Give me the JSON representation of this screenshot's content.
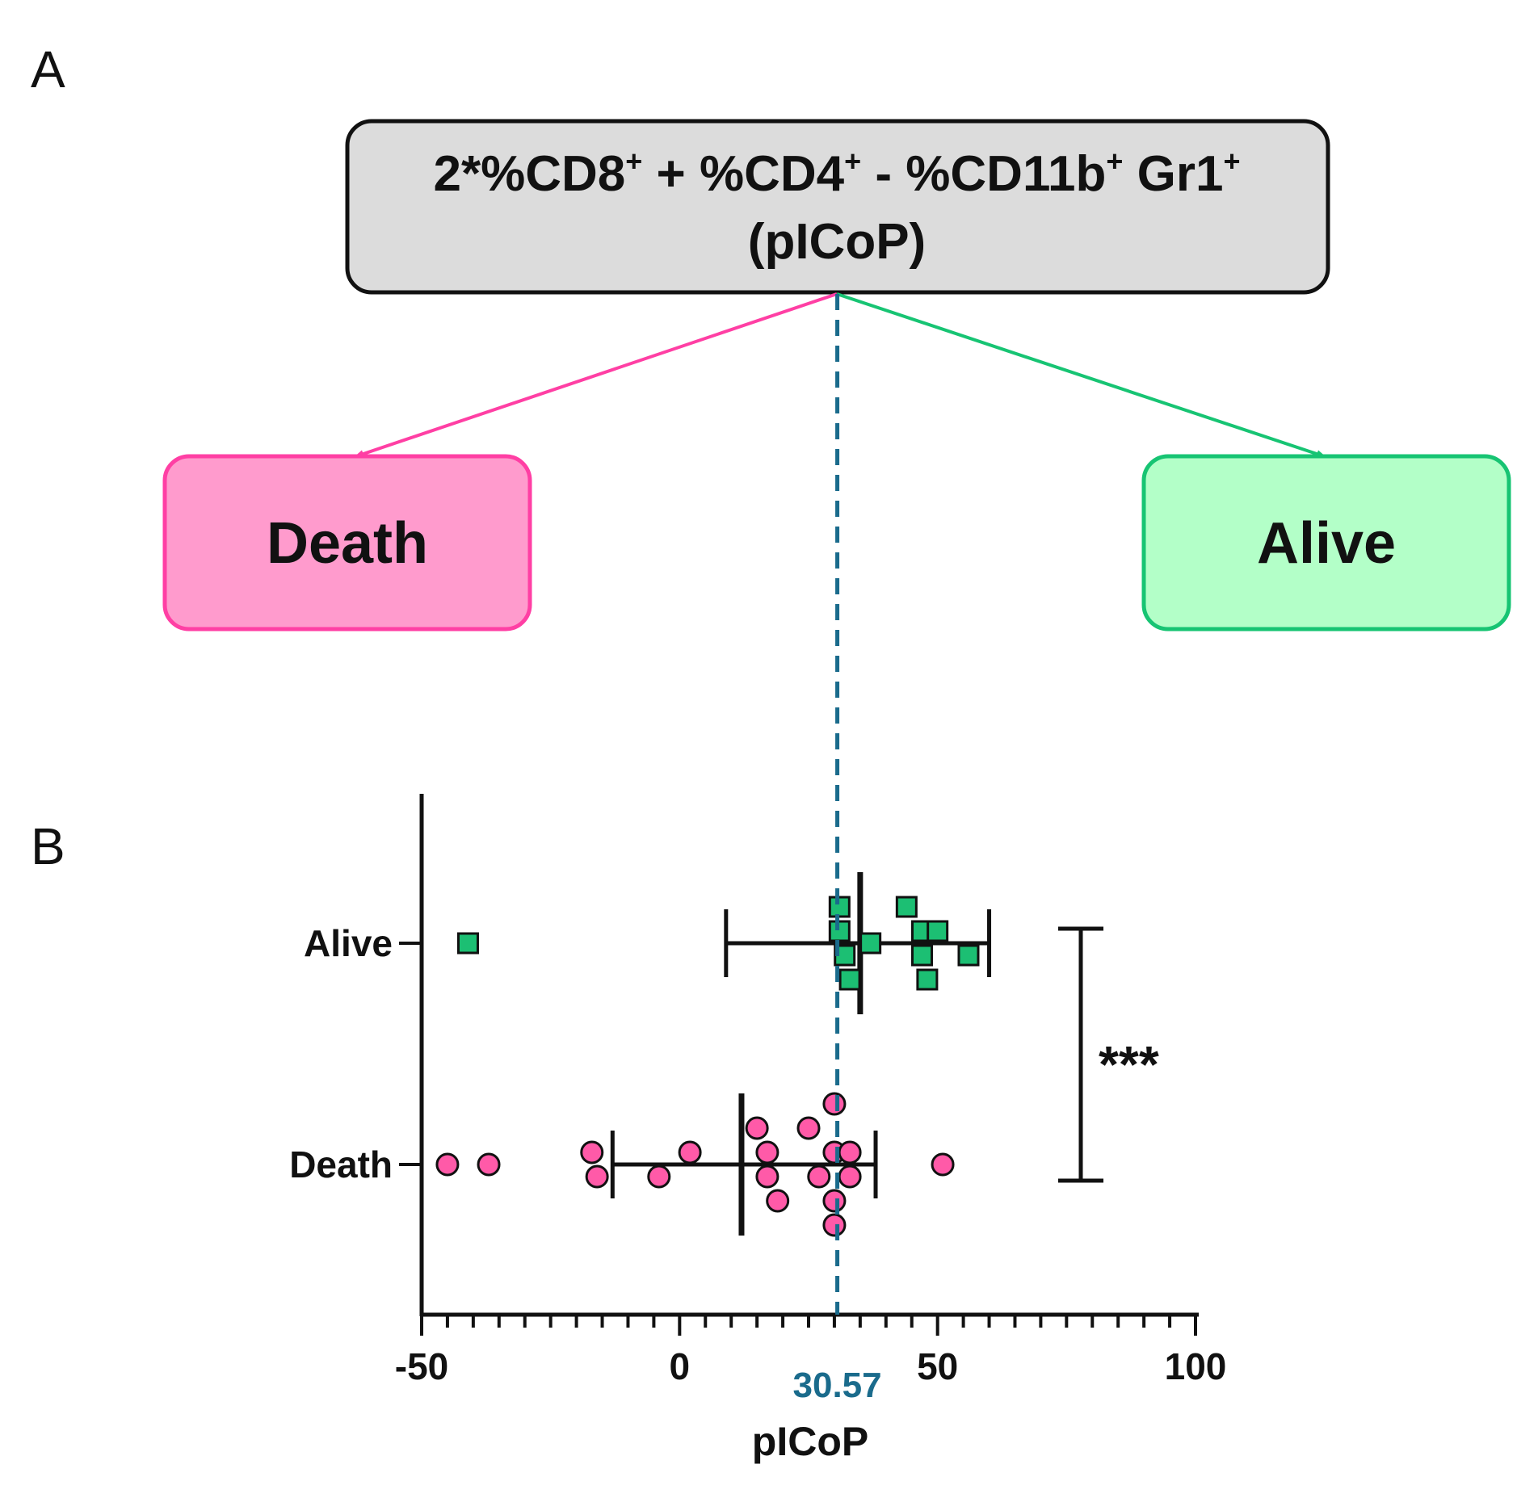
{
  "panel_a": {
    "label": "A",
    "formula_box": {
      "line1_parts": [
        "2*%CD8",
        "+",
        " + %CD4",
        "+",
        " - %CD11b",
        "+",
        " Gr1",
        "+"
      ],
      "line2": "(pICoP)"
    },
    "outcomes": [
      {
        "key": "death",
        "label": "Death",
        "fill": "#ff9bcd",
        "stroke": "#ff3fa4",
        "arrow": "#ff3fa4"
      },
      {
        "key": "alive",
        "label": "Alive",
        "fill": "#b3ffc8",
        "stroke": "#17c473",
        "arrow": "#17c473"
      }
    ]
  },
  "panel_b": {
    "label": "B"
  },
  "chart_data": {
    "type": "scatter",
    "orientation": "horizontal",
    "xlabel": "pICoP",
    "xlim": [
      -50,
      100
    ],
    "x_ticks": [
      -50,
      0,
      50,
      100
    ],
    "x_minor_step": 5,
    "categories": [
      "Alive",
      "Death"
    ],
    "threshold": {
      "value": 30.57,
      "label": "30.57",
      "color": "#1a6b8c",
      "style": "dashed"
    },
    "significance": {
      "label": "***",
      "between": [
        "Alive",
        "Death"
      ]
    },
    "series": [
      {
        "name": "Alive",
        "marker": "square",
        "color": "#1cbf73",
        "points": [
          {
            "x": -41,
            "jitter": 0
          },
          {
            "x": 31,
            "jitter": 1.5
          },
          {
            "x": 44,
            "jitter": 1.5
          },
          {
            "x": 31,
            "jitter": 0.5
          },
          {
            "x": 47,
            "jitter": 0.5
          },
          {
            "x": 50,
            "jitter": 0.5
          },
          {
            "x": 37,
            "jitter": 0
          },
          {
            "x": 32,
            "jitter": -0.5
          },
          {
            "x": 47,
            "jitter": -0.5
          },
          {
            "x": 56,
            "jitter": -0.5
          },
          {
            "x": 33,
            "jitter": -1.5
          },
          {
            "x": 48,
            "jitter": -1.5
          }
        ],
        "mean": 35,
        "sd_low": 9,
        "sd_high": 60
      },
      {
        "name": "Death",
        "marker": "circle",
        "color": "#ff5aa8",
        "points": [
          {
            "x": 30,
            "jitter": 2.5
          },
          {
            "x": 15,
            "jitter": 1.5
          },
          {
            "x": 25,
            "jitter": 1.5
          },
          {
            "x": -17,
            "jitter": 0.5
          },
          {
            "x": 2,
            "jitter": 0.5
          },
          {
            "x": 17,
            "jitter": 0.5
          },
          {
            "x": 30,
            "jitter": 0.5
          },
          {
            "x": 33,
            "jitter": 0.5
          },
          {
            "x": -45,
            "jitter": 0
          },
          {
            "x": -37,
            "jitter": 0
          },
          {
            "x": 51,
            "jitter": 0
          },
          {
            "x": -16,
            "jitter": -0.5
          },
          {
            "x": -4,
            "jitter": -0.5
          },
          {
            "x": 17,
            "jitter": -0.5
          },
          {
            "x": 27,
            "jitter": -0.5
          },
          {
            "x": 33,
            "jitter": -0.5
          },
          {
            "x": 19,
            "jitter": -1.5
          },
          {
            "x": 30,
            "jitter": -1.5
          },
          {
            "x": 30,
            "jitter": -2.5
          }
        ],
        "mean": 12,
        "sd_low": -13,
        "sd_high": 38
      }
    ]
  }
}
